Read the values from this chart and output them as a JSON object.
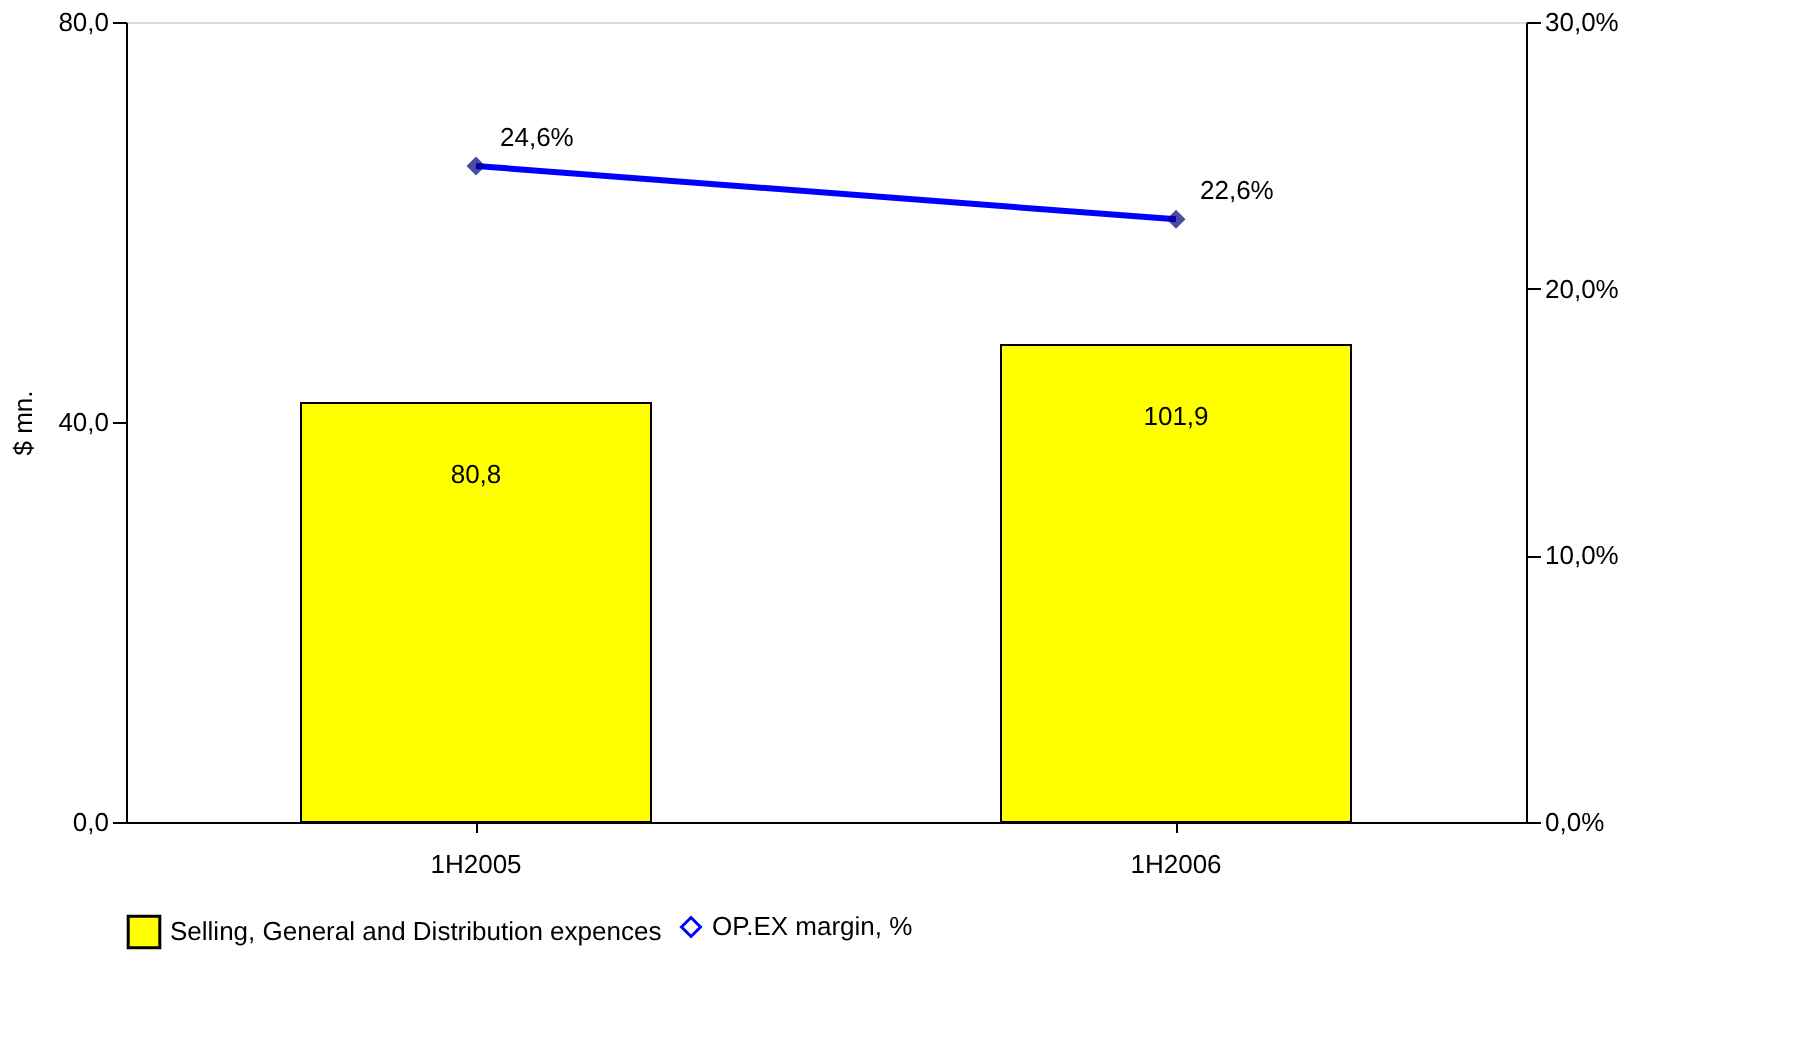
{
  "chart_data": {
    "type": "bar",
    "categories": [
      "1H2005",
      "1H2006"
    ],
    "ylabel": "$ mn.",
    "ylim": [
      0,
      80
    ],
    "yticks": [
      {
        "value": 0,
        "label": "0,0"
      },
      {
        "value": 40,
        "label": "40,0"
      },
      {
        "value": 80,
        "label": "80,0"
      }
    ],
    "y2lim": [
      0,
      30
    ],
    "y2ticks": [
      {
        "value": 0,
        "label": "0,0%"
      },
      {
        "value": 10,
        "label": "10,0%"
      },
      {
        "value": 20,
        "label": "20,0%"
      },
      {
        "value": 30,
        "label": "30,0%"
      }
    ],
    "series": [
      {
        "name": "Selling, General and Distribution expences",
        "color": "#ffff00",
        "values": [
          41.9,
          47.7
        ]
      },
      {
        "name": "OP.EX margin, %",
        "type": "line",
        "axis": "y2",
        "color": "#0000ff",
        "marker": "diamond",
        "values": [
          24.6,
          22.6
        ],
        "value_labels": [
          "24,6%",
          "22,6%"
        ]
      }
    ],
    "annotations": [
      "80,8",
      "101,9"
    ],
    "legend": "bottom"
  }
}
